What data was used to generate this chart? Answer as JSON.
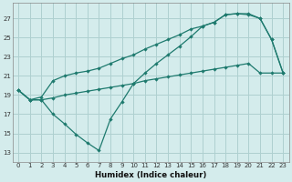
{
  "xlabel": "Humidex (Indice chaleur)",
  "bg_color": "#d4ecec",
  "grid_color": "#aed0d0",
  "line_color": "#1e7a6e",
  "xlim": [
    -0.5,
    23.5
  ],
  "ylim": [
    12.0,
    28.6
  ],
  "xticks": [
    0,
    1,
    2,
    3,
    4,
    5,
    6,
    7,
    8,
    9,
    10,
    11,
    12,
    13,
    14,
    15,
    16,
    17,
    18,
    19,
    20,
    21,
    22,
    23
  ],
  "yticks": [
    13,
    15,
    17,
    19,
    21,
    23,
    25,
    27
  ],
  "curve1_x": [
    0,
    1,
    2,
    3,
    4,
    5,
    6,
    7,
    8,
    9,
    10,
    11,
    12,
    13,
    14,
    15,
    16,
    17,
    18,
    19,
    20,
    21,
    22,
    23
  ],
  "curve1_y": [
    19.5,
    18.5,
    18.5,
    17.0,
    16.0,
    14.9,
    14.0,
    13.2,
    16.5,
    18.3,
    20.2,
    21.3,
    22.3,
    23.2,
    24.1,
    25.1,
    26.2,
    26.6,
    27.4,
    27.5,
    27.5,
    27.0,
    24.8,
    21.3
  ],
  "curve2_x": [
    0,
    1,
    2,
    3,
    4,
    5,
    6,
    7,
    8,
    9,
    10,
    11,
    12,
    13,
    14,
    15,
    16,
    17,
    18,
    19,
    20,
    21,
    22,
    23
  ],
  "curve2_y": [
    19.5,
    18.5,
    18.8,
    20.5,
    21.0,
    21.3,
    21.5,
    21.8,
    22.3,
    22.8,
    23.2,
    23.8,
    24.3,
    24.8,
    25.3,
    25.9,
    26.2,
    26.6,
    27.4,
    27.5,
    27.4,
    27.0,
    24.8,
    21.3
  ],
  "curve3_x": [
    0,
    1,
    2,
    3,
    4,
    5,
    6,
    7,
    8,
    9,
    10,
    11,
    12,
    13,
    14,
    15,
    16,
    17,
    18,
    19,
    20,
    21,
    22,
    23
  ],
  "curve3_y": [
    19.5,
    18.5,
    18.5,
    18.7,
    19.0,
    19.2,
    19.4,
    19.6,
    19.8,
    20.0,
    20.2,
    20.5,
    20.7,
    20.9,
    21.1,
    21.3,
    21.5,
    21.7,
    21.9,
    22.1,
    22.3,
    21.3,
    21.3,
    21.3
  ]
}
